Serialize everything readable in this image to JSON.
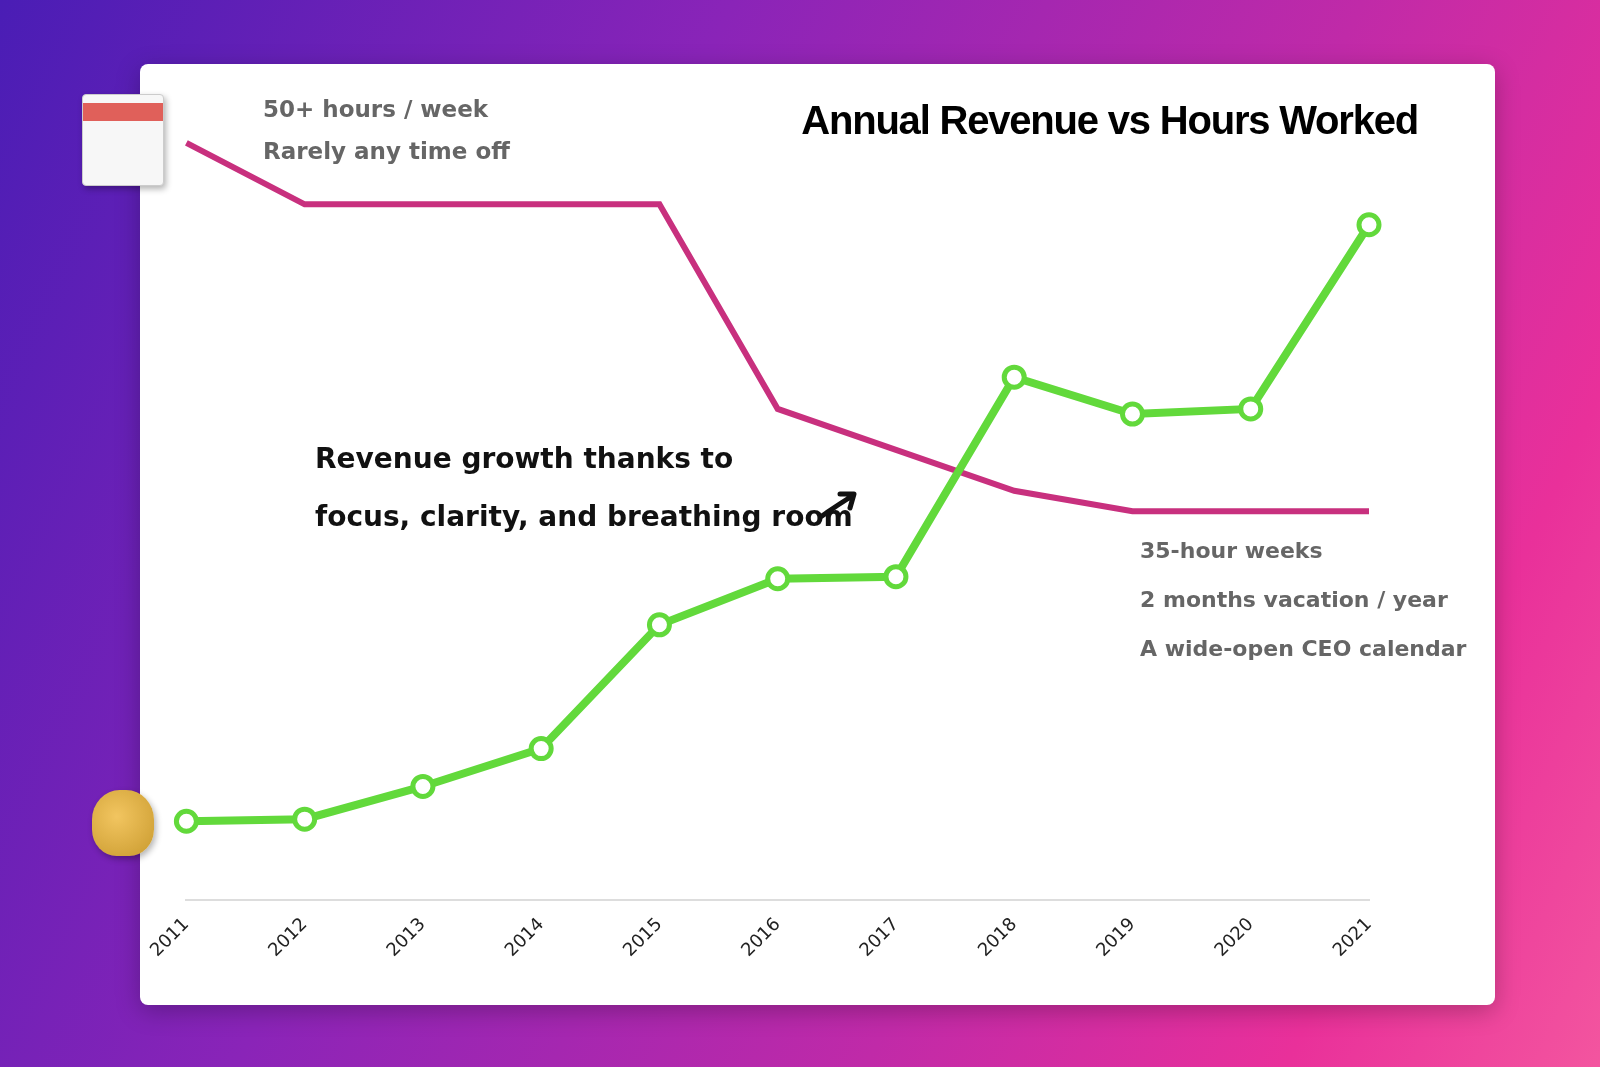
{
  "chart_data": {
    "type": "line",
    "title": "Annual Revenue vs Hours Worked",
    "categories": [
      "2011",
      "2012",
      "2013",
      "2014",
      "2015",
      "2016",
      "2017",
      "2018",
      "2019",
      "2020",
      "2021"
    ],
    "series": [
      {
        "color": "#c8307e",
        "values": [
          53,
          50,
          50,
          50,
          50,
          40,
          38,
          36,
          35,
          35,
          35
        ],
        "axis": "y2",
        "marker": "none"
      },
      {
        "color": "#62d93b",
        "values": [
          7.7,
          7.9,
          11.1,
          14.8,
          26.9,
          31.4,
          31.6,
          51.1,
          47.5,
          48.0,
          66.0
        ],
        "marker": "circle"
      }
    ],
    "ylim": [
      0,
      78
    ],
    "y2lim": [
      16,
      55
    ],
    "tick_labels": "x",
    "grid": false,
    "annotations": [
      [
        "50+ hours / week",
        "Rarely any time off"
      ],
      [
        "Revenue growth thanks to",
        "focus, clarity, and breathing room"
      ],
      [
        "35-hour weeks",
        "2 months vacation / year",
        "A wide-open CEO calendar"
      ]
    ]
  }
}
